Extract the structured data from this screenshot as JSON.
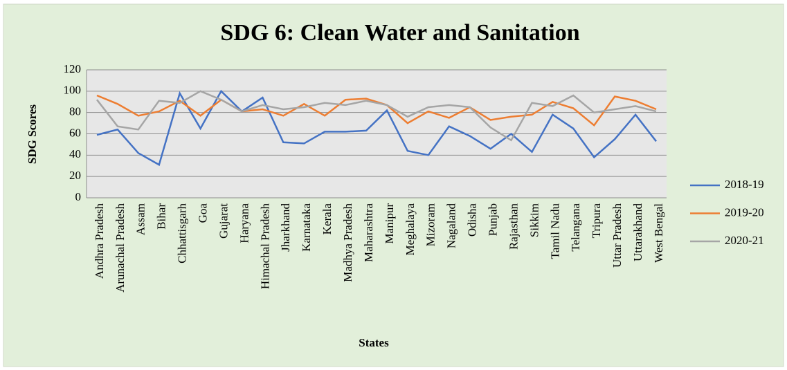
{
  "chart_data": {
    "type": "line",
    "title": "SDG 6: Clean Water and Sanitation",
    "x_label": "States",
    "y_label": "SDG Scores",
    "categories": [
      "Andhra Pradesh",
      "Arunachal Pradesh",
      "Assam",
      "Bihar",
      "Chhattisgarh",
      "Goa",
      "Gujarat",
      "Haryana",
      "Himachal Pradesh",
      "Jharkhand",
      "Karnataka",
      "Kerala",
      "Madhya Pradesh",
      "Maharashtra",
      "Manipur",
      "Meghalaya",
      "Mizoram",
      "Nagaland",
      "Odisha",
      "Punjab",
      "Rajasthan",
      "Sikkim",
      "Tamil Nadu",
      "Telangana",
      "Tripura",
      "Uttar Pradesh",
      "Uttarakhand",
      "West Bengal"
    ],
    "series": [
      {
        "name": "2018-19",
        "color": "#4472c4",
        "values": [
          59,
          64,
          42,
          31,
          98,
          65,
          100,
          81,
          94,
          52,
          51,
          62,
          62,
          63,
          82,
          44,
          40,
          67,
          58,
          46,
          60,
          43,
          78,
          65,
          38,
          55,
          78,
          53
        ]
      },
      {
        "name": "2019-20",
        "color": "#ed7d31",
        "values": [
          96,
          88,
          77,
          81,
          91,
          77,
          92,
          81,
          83,
          77,
          88,
          77,
          92,
          93,
          87,
          70,
          81,
          75,
          85,
          73,
          76,
          78,
          90,
          84,
          68,
          95,
          91,
          83
        ]
      },
      {
        "name": "2020-21",
        "color": "#a5a5a5",
        "values": [
          92,
          67,
          64,
          91,
          89,
          100,
          92,
          81,
          87,
          83,
          85,
          89,
          87,
          91,
          87,
          76,
          85,
          87,
          85,
          66,
          54,
          89,
          86,
          96,
          80,
          83,
          86,
          81
        ]
      }
    ],
    "ylim": [
      0,
      120
    ],
    "yticks": [
      0,
      20,
      40,
      60,
      80,
      100,
      120
    ],
    "grid": true,
    "legend": "right"
  }
}
